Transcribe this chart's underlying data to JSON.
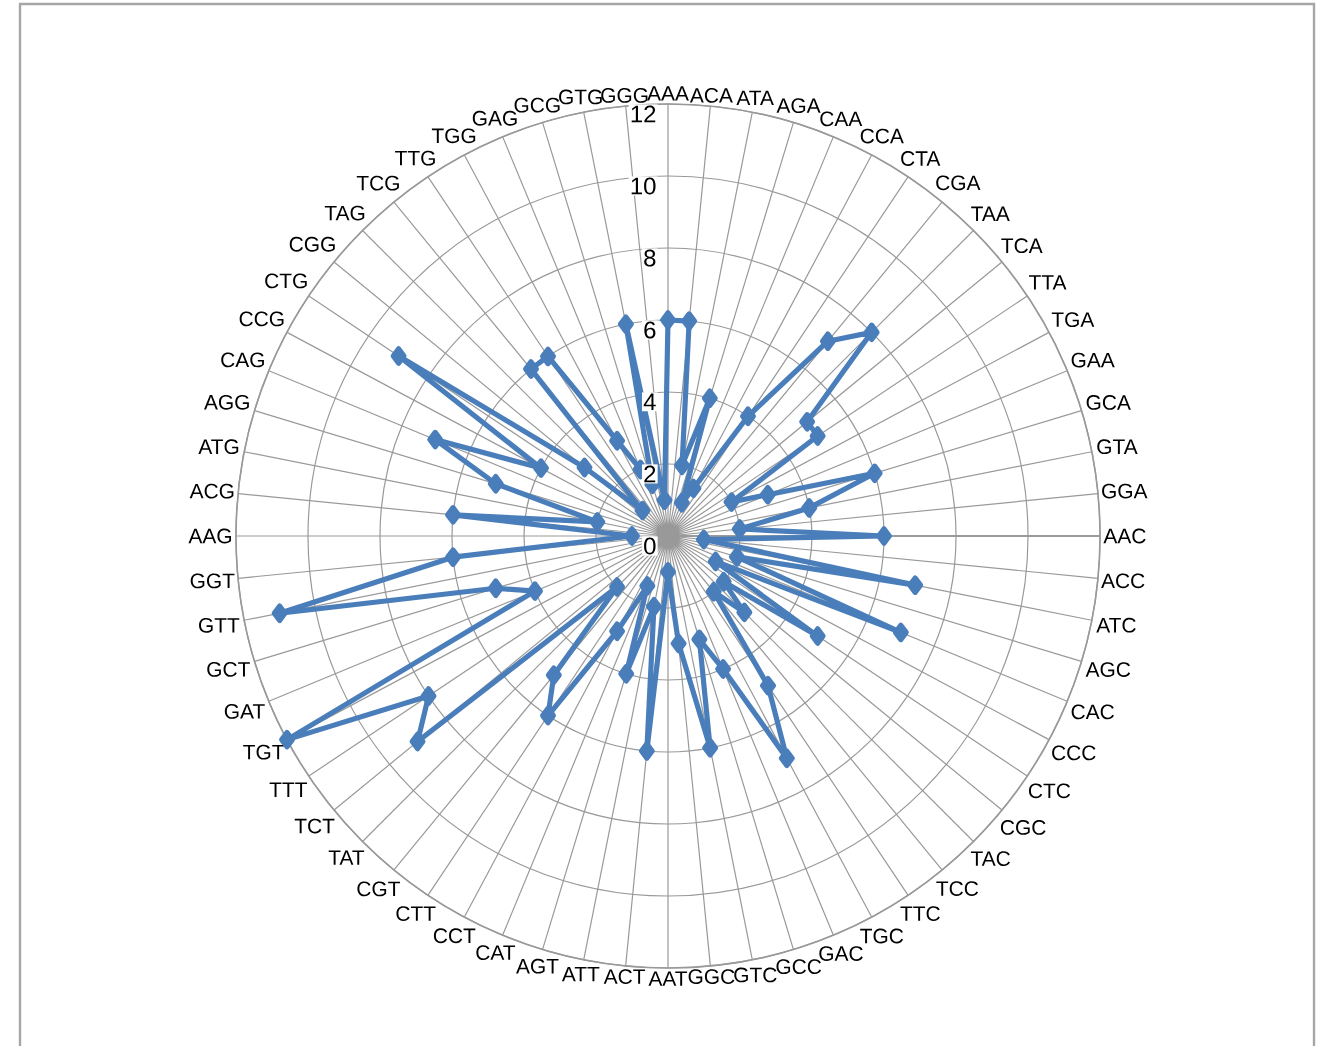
{
  "chart_data": {
    "type": "radar",
    "categories": [
      "AAA",
      "ACA",
      "ATA",
      "AGA",
      "CAA",
      "CCA",
      "CTA",
      "CGA",
      "TAA",
      "TCA",
      "TTA",
      "TGA",
      "GAA",
      "GCA",
      "GTA",
      "GGA",
      "AAC",
      "ACC",
      "ATC",
      "AGC",
      "CAC",
      "CCC",
      "CTC",
      "CGC",
      "TAC",
      "TCC",
      "TTC",
      "TGC",
      "GAC",
      "GCC",
      "GTC",
      "GGC",
      "AAT",
      "ACT",
      "ATT",
      "AGT",
      "CAT",
      "CCT",
      "CTT",
      "CGT",
      "TAT",
      "TCT",
      "TTT",
      "TGT",
      "GAT",
      "GCT",
      "GTT",
      "GGT",
      "AAG",
      "ACG",
      "ATG",
      "AGG",
      "CAG",
      "CCG",
      "CTG",
      "CGG",
      "TAG",
      "TCG",
      "TTG",
      "TGG",
      "GAG",
      "GCG",
      "GTG",
      "GGG"
    ],
    "series": [
      {
        "color": "#4a7ebb",
        "values": [
          6,
          6,
          2,
          4,
          1,
          1.5,
          4,
          7,
          8,
          5,
          5,
          2,
          3,
          6,
          4,
          2,
          6,
          1,
          7,
          2,
          7,
          1.5,
          5,
          2,
          3,
          2,
          5,
          7,
          4,
          3,
          6,
          3,
          1,
          6,
          2,
          4,
          1.5,
          3,
          6,
          5,
          2,
          9,
          8,
          12,
          4,
          5,
          11,
          6,
          1,
          6,
          2,
          5,
          7,
          4,
          9,
          3,
          1,
          6,
          6,
          3,
          2,
          1.5,
          6,
          1
        ]
      }
    ],
    "ylim": [
      0,
      12
    ],
    "yticks": [
      0,
      2,
      4,
      6,
      8,
      10,
      12
    ],
    "grid": true,
    "marker": "diamond"
  }
}
